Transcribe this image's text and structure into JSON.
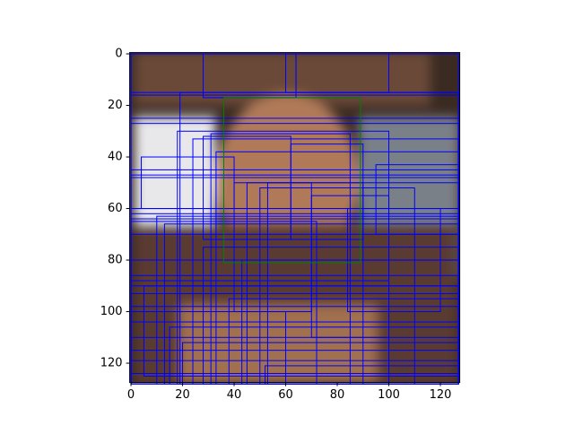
{
  "chart_data": {
    "type": "image-boxes",
    "xlim": [
      -0.5,
      127.5
    ],
    "ylim": [
      127.5,
      -0.5
    ],
    "xticks": [
      0,
      20,
      40,
      60,
      80,
      100,
      120
    ],
    "yticks": [
      0,
      20,
      40,
      60,
      80,
      100,
      120
    ],
    "boxes": [
      {
        "color": "#0000ff",
        "values": [
          [
            0,
            0,
            127,
            128
          ],
          [
            0,
            0,
            64,
            16
          ],
          [
            0,
            15,
            127,
            16
          ],
          [
            19,
            15,
            127,
            128
          ],
          [
            0,
            27,
            127,
            128
          ],
          [
            18,
            30,
            100,
            128
          ],
          [
            24,
            33,
            127,
            128
          ],
          [
            31,
            31,
            85,
            128
          ],
          [
            33,
            38,
            127,
            128
          ],
          [
            0,
            45,
            127,
            128
          ],
          [
            0,
            47,
            127,
            60
          ],
          [
            0,
            48,
            127,
            128
          ],
          [
            45,
            50,
            127,
            128
          ],
          [
            50,
            52,
            110,
            128
          ],
          [
            53,
            50,
            90,
            128
          ],
          [
            0,
            62,
            127,
            128
          ],
          [
            10,
            63,
            127,
            128
          ],
          [
            0,
            64,
            127,
            90
          ],
          [
            0,
            65,
            72,
            128
          ],
          [
            13,
            66,
            127,
            128
          ],
          [
            0,
            70,
            127,
            128
          ],
          [
            28,
            75,
            127,
            128
          ],
          [
            0,
            80,
            127,
            128
          ],
          [
            43,
            80,
            127,
            128
          ],
          [
            0,
            86,
            127,
            128
          ],
          [
            0,
            88,
            100,
            128
          ],
          [
            5,
            90,
            127,
            125
          ],
          [
            0,
            93,
            127,
            128
          ],
          [
            38,
            95,
            127,
            128
          ],
          [
            0,
            98,
            127,
            128
          ],
          [
            0,
            100,
            60,
            128
          ],
          [
            0,
            104,
            127,
            128
          ],
          [
            15,
            106,
            127,
            128
          ],
          [
            0,
            110,
            127,
            128
          ],
          [
            20,
            112,
            127,
            128
          ],
          [
            0,
            115,
            127,
            128
          ],
          [
            0,
            119,
            127,
            128
          ],
          [
            52,
            121,
            127,
            128
          ],
          [
            0,
            124,
            127,
            128
          ],
          [
            28,
            32,
            62,
            72
          ],
          [
            62,
            35,
            90,
            72
          ],
          [
            40,
            50,
            70,
            100
          ],
          [
            70,
            55,
            100,
            110
          ],
          [
            84,
            60,
            120,
            100
          ],
          [
            95,
            43,
            127,
            70
          ],
          [
            4,
            40,
            40,
            60
          ],
          [
            60,
            0,
            100,
            15
          ],
          [
            28,
            0,
            64,
            17
          ],
          [
            0,
            25,
            127,
            60
          ]
        ]
      },
      {
        "color": "#008000",
        "values": [
          [
            36,
            17,
            89,
            81
          ]
        ]
      }
    ]
  }
}
